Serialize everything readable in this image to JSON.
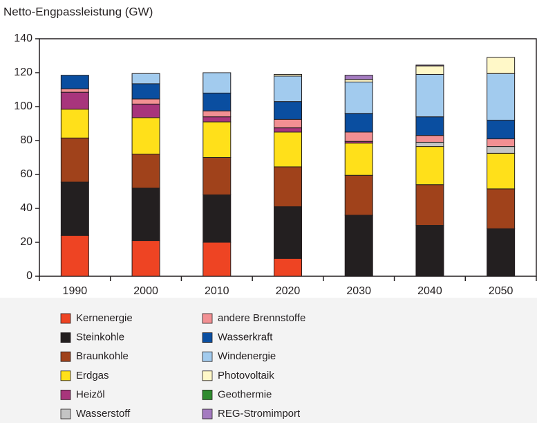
{
  "chart_data": {
    "type": "bar",
    "stacked": true,
    "title": "Netto-Engpassleistung (GW)",
    "categories": [
      "1990",
      "2000",
      "2010",
      "2020",
      "2030",
      "2040",
      "2050"
    ],
    "series": [
      {
        "name": "Kernenergie",
        "color": "#ee4423",
        "values": [
          24,
          21,
          20,
          10.5,
          0,
          0,
          0
        ]
      },
      {
        "name": "Steinkohle",
        "color": "#231f20",
        "values": [
          31.5,
          31,
          28,
          30.5,
          36,
          30,
          28
        ]
      },
      {
        "name": "Braunkohle",
        "color": "#a0421b",
        "values": [
          26,
          20,
          22,
          23.5,
          23.5,
          24,
          23.5
        ]
      },
      {
        "name": "Erdgas",
        "color": "#ffe01a",
        "values": [
          17,
          21.5,
          21,
          20.5,
          19,
          22.5,
          21
        ]
      },
      {
        "name": "Heizöl",
        "color": "#a8357c",
        "values": [
          10,
          8,
          3,
          2.5,
          1,
          0,
          0
        ]
      },
      {
        "name": "Wasserstoff",
        "color": "#c4c4c4",
        "values": [
          0,
          0,
          0,
          0,
          0,
          2.5,
          4
        ]
      },
      {
        "name": "andere Brennstoffe",
        "color": "#f29093",
        "values": [
          2,
          3,
          3.5,
          5,
          5.5,
          4,
          4.5
        ]
      },
      {
        "name": "Wasserkraft",
        "color": "#0a4ea0",
        "values": [
          8,
          9,
          10.5,
          10.5,
          11,
          11,
          11
        ]
      },
      {
        "name": "Windenergie",
        "color": "#a2cbee",
        "values": [
          0,
          6,
          12,
          15,
          18.5,
          25,
          27.5
        ]
      },
      {
        "name": "Photovoltaik",
        "color": "#fff8c8",
        "values": [
          0,
          0,
          0,
          1,
          1.5,
          5,
          9.5
        ]
      },
      {
        "name": "Geothermie",
        "color": "#2e8b2e",
        "values": [
          0,
          0,
          0,
          0,
          0,
          0,
          0
        ]
      },
      {
        "name": "REG-Stromimport",
        "color": "#a47bc0",
        "values": [
          0,
          0,
          0,
          0,
          2.5,
          0.5,
          0
        ]
      }
    ],
    "ylim": [
      0,
      140
    ],
    "yticks": [
      0,
      20,
      40,
      60,
      80,
      100,
      120,
      140
    ]
  }
}
